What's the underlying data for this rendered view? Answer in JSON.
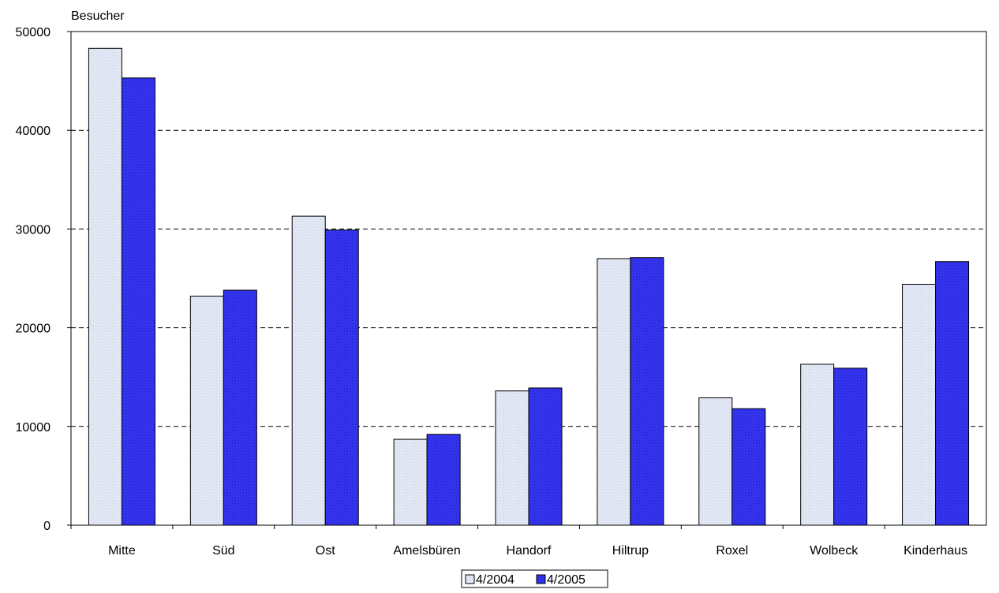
{
  "chart_data": {
    "type": "bar",
    "title": "",
    "ylabel": "Besucher",
    "xlabel": "",
    "ylim": [
      0,
      50000
    ],
    "yticks": [
      0,
      10000,
      20000,
      30000,
      40000,
      50000
    ],
    "grid": "horizontal dashed",
    "legend_position": "bottom",
    "categories": [
      "Mitte",
      "Süd",
      "Ost",
      "Amelsbüren",
      "Handorf",
      "Hiltrup",
      "Roxel",
      "Wolbeck",
      "Kinderhaus"
    ],
    "series": [
      {
        "name": "4/2004",
        "color": "#dde4f2",
        "values": [
          48300,
          23200,
          31300,
          8700,
          13600,
          27000,
          12900,
          16300,
          24400
        ]
      },
      {
        "name": "4/2005",
        "color": "#3333ee",
        "values": [
          45300,
          23800,
          29900,
          9200,
          13900,
          27100,
          11800,
          15900,
          26700
        ]
      }
    ]
  }
}
